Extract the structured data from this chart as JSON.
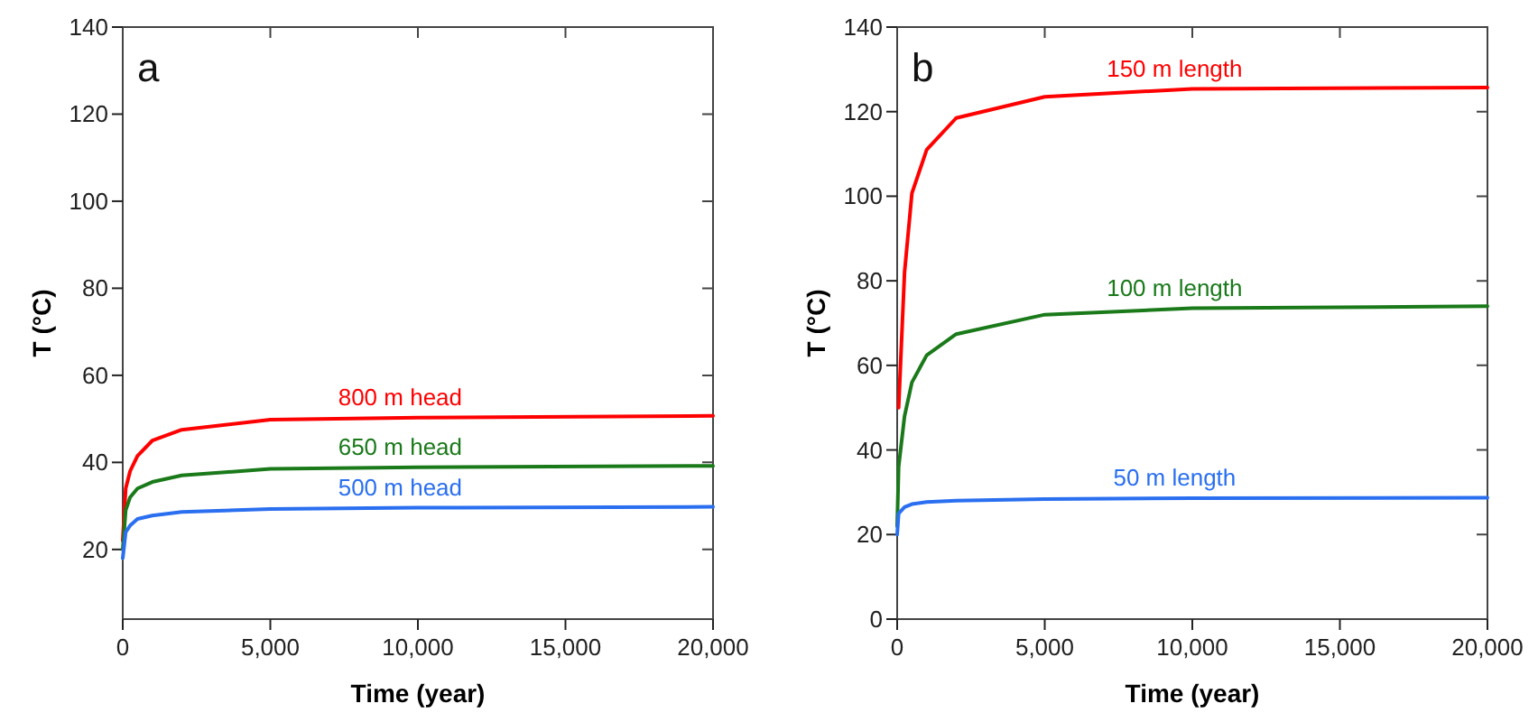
{
  "chart_data": [
    {
      "type": "line",
      "title": "a",
      "xlabel": "Time (year)",
      "ylabel": "T (°C)",
      "xlim": [
        0,
        20000
      ],
      "ylim": [
        4,
        140
      ],
      "xticks": [
        0,
        {
          "value": 5000,
          "label": "5,000"
        },
        {
          "value": 10000,
          "label": "10,000"
        },
        {
          "value": 15000,
          "label": "15,000"
        },
        {
          "value": 20000,
          "label": "20,000"
        }
      ],
      "yticks": [
        20,
        40,
        60,
        80,
        100,
        120,
        140
      ],
      "legend": false,
      "grid": false,
      "marker": "none",
      "line_style": "solid",
      "x": [
        0,
        100,
        250,
        500,
        1000,
        2000,
        5000,
        10000,
        20000
      ],
      "series": [
        {
          "name": "800 m head",
          "color": "#ff0000",
          "values": [
            22,
            34,
            38,
            41.5,
            45,
            47.5,
            49.8,
            50.3,
            50.7
          ]
        },
        {
          "name": "650 m head",
          "color": "#1a7a1a",
          "values": [
            20,
            29,
            32,
            34,
            35.5,
            37,
            38.5,
            38.9,
            39.2
          ]
        },
        {
          "name": "500 m head",
          "color": "#2a6ff0",
          "values": [
            18,
            24,
            25.5,
            27,
            27.8,
            28.6,
            29.3,
            29.6,
            29.8
          ]
        }
      ]
    },
    {
      "type": "line",
      "title": "b",
      "xlabel": "Time (year)",
      "ylabel": "T (°C)",
      "xlim": [
        0,
        20000
      ],
      "ylim": [
        0,
        140
      ],
      "xticks": [
        0,
        {
          "value": 5000,
          "label": "5,000"
        },
        {
          "value": 10000,
          "label": "10,000"
        },
        {
          "value": 15000,
          "label": "15,000"
        },
        {
          "value": 20000,
          "label": "20,000"
        }
      ],
      "yticks": [
        0,
        20,
        40,
        60,
        80,
        100,
        120,
        140
      ],
      "legend": false,
      "grid": false,
      "marker": "none",
      "line_style": "solid",
      "x": [
        0,
        50,
        250,
        500,
        1000,
        2000,
        5000,
        10000,
        20000
      ],
      "series": [
        {
          "name": "150 m length",
          "color": "#ff0000",
          "values": [
            null,
            50,
            82,
            100.7,
            111,
            118.5,
            123.5,
            125.4,
            125.7
          ]
        },
        {
          "name": "100 m length",
          "color": "#1a7a1a",
          "values": [
            22,
            36,
            48,
            56,
            62.4,
            67.4,
            72,
            73.5,
            74
          ]
        },
        {
          "name": "50 m length",
          "color": "#2a6ff0",
          "values": [
            20,
            25,
            26.5,
            27.2,
            27.7,
            28,
            28.4,
            28.6,
            28.7
          ]
        }
      ]
    }
  ]
}
